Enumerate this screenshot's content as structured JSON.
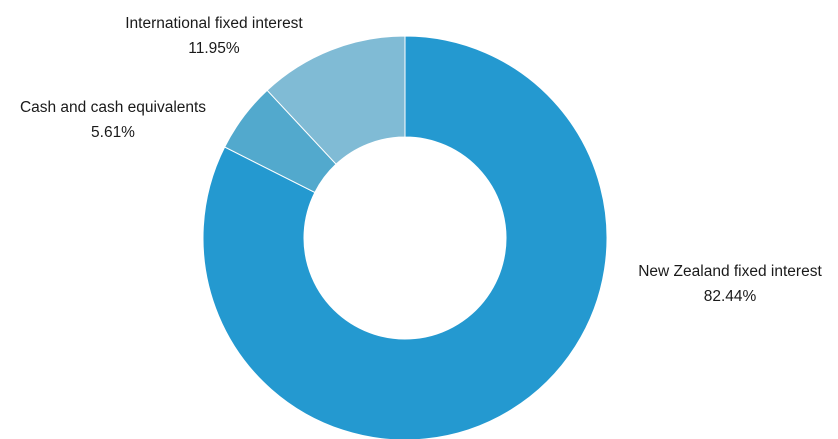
{
  "chart_data": {
    "type": "pie",
    "variant": "donut",
    "title": "",
    "slices": [
      {
        "label": "New Zealand fixed interest",
        "value": 82.44,
        "display": "82.44%",
        "color": "#2499d0"
      },
      {
        "label": "Cash and cash equivalents",
        "value": 5.61,
        "display": "5.61%",
        "color": "#52a9cd"
      },
      {
        "label": "International fixed interest",
        "value": 11.95,
        "display": "11.95%",
        "color": "#80bbd5"
      }
    ],
    "start_angle": "12 o'clock",
    "direction": "clockwise",
    "legend": "none",
    "labels": "outside, name above percentage"
  }
}
